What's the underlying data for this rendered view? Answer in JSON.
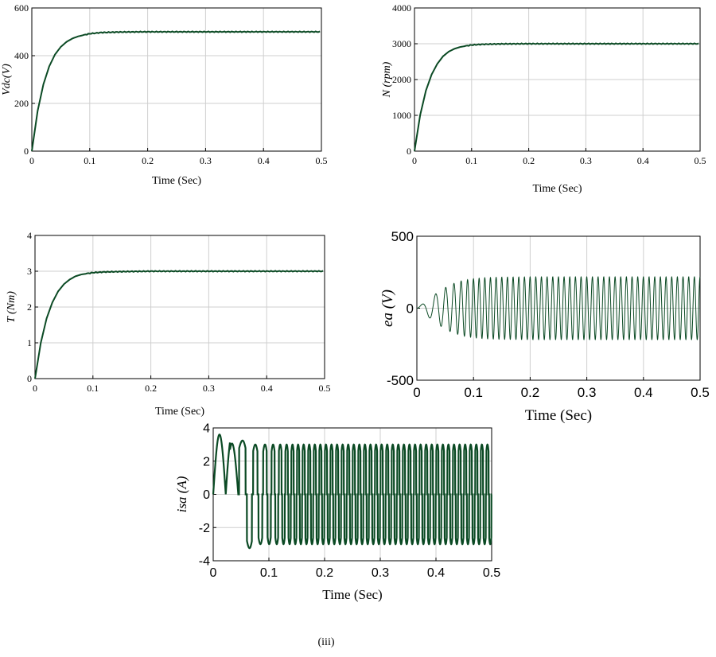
{
  "caption": "(iii)",
  "trace_color": "#0b4a24",
  "chart_data": [
    {
      "id": "vdc",
      "type": "line",
      "xlabel": "Time (Sec)",
      "ylabel": "Vdc(V)",
      "xlim": [
        0,
        0.5
      ],
      "ylim": [
        0,
        600
      ],
      "x_ticks": [
        "0",
        "0.1",
        "0.2",
        "0.3",
        "0.4",
        "0.5"
      ],
      "y_ticks": [
        "0",
        "200",
        "400",
        "600"
      ],
      "grid": true,
      "series": [
        {
          "x": [
            0,
            0.01,
            0.02,
            0.03,
            0.04,
            0.05,
            0.06,
            0.07,
            0.08,
            0.1,
            0.12,
            0.15,
            0.2,
            0.3,
            0.4,
            0.5
          ],
          "y": [
            0,
            168,
            280,
            355,
            405,
            437,
            458,
            472,
            481,
            492,
            497,
            499,
            500,
            500,
            500,
            500
          ]
        }
      ]
    },
    {
      "id": "speed",
      "type": "line",
      "xlabel": "Time (Sec)",
      "ylabel": "N (rpm)",
      "xlim": [
        0,
        0.5
      ],
      "ylim": [
        0,
        4000
      ],
      "x_ticks": [
        "0",
        "0.1",
        "0.2",
        "0.3",
        "0.4",
        "0.5"
      ],
      "y_ticks": [
        "0",
        "1000",
        "2000",
        "3000",
        "4000"
      ],
      "grid": true,
      "series": [
        {
          "x": [
            0,
            0.01,
            0.02,
            0.03,
            0.04,
            0.05,
            0.06,
            0.07,
            0.08,
            0.1,
            0.12,
            0.15,
            0.2,
            0.3,
            0.4,
            0.5
          ],
          "y": [
            0,
            1010,
            1690,
            2140,
            2440,
            2650,
            2780,
            2860,
            2910,
            2965,
            2985,
            2995,
            3000,
            3000,
            3000,
            3000
          ]
        }
      ]
    },
    {
      "id": "torque",
      "type": "line",
      "xlabel": "Time (Sec)",
      "ylabel": "T (Nm)",
      "xlim": [
        0,
        0.5
      ],
      "ylim": [
        0,
        4
      ],
      "x_ticks": [
        "0",
        "0.1",
        "0.2",
        "0.3",
        "0.4",
        "0.5"
      ],
      "y_ticks": [
        "0",
        "1",
        "2",
        "3",
        "4"
      ],
      "grid": true,
      "series": [
        {
          "x": [
            0,
            0.01,
            0.02,
            0.03,
            0.04,
            0.05,
            0.06,
            0.07,
            0.08,
            0.1,
            0.12,
            0.15,
            0.2,
            0.3,
            0.4,
            0.5
          ],
          "y": [
            0,
            1.0,
            1.68,
            2.13,
            2.44,
            2.64,
            2.77,
            2.86,
            2.91,
            2.96,
            2.98,
            2.99,
            3.0,
            3.0,
            3.0,
            3.0
          ]
        }
      ]
    },
    {
      "id": "emf",
      "type": "line",
      "xlabel": "Time (Sec)",
      "ylabel": "ea (V)",
      "xlim": [
        0,
        0.5
      ],
      "ylim": [
        -500,
        500
      ],
      "x_ticks": [
        "0",
        "0.1",
        "0.2",
        "0.3",
        "0.4",
        "0.5"
      ],
      "y_ticks": [
        "500",
        "0",
        "-500"
      ],
      "grid": true,
      "envelope": {
        "t": [
          0,
          0.02,
          0.04,
          0.06,
          0.08,
          0.1,
          0.12,
          0.15,
          0.2,
          0.3,
          0.5
        ],
        "amplitude": [
          0,
          60,
          120,
          165,
          192,
          205,
          212,
          216,
          218,
          218,
          218
        ]
      },
      "steady_state_frequency_hz": 100
    },
    {
      "id": "current",
      "type": "line",
      "xlabel": "Time (Sec)",
      "ylabel": "isa (A)",
      "xlim": [
        0,
        0.5
      ],
      "ylim": [
        -4,
        4
      ],
      "x_ticks": [
        "0",
        "0.1",
        "0.2",
        "0.3",
        "0.4",
        "0.5"
      ],
      "y_ticks": [
        "4",
        "2",
        "0",
        "-2",
        "-4"
      ],
      "grid": true,
      "startup_peak_a": 3.6,
      "steady_state_peak_a": 3.0,
      "steady_state_frequency_hz": 100
    }
  ]
}
